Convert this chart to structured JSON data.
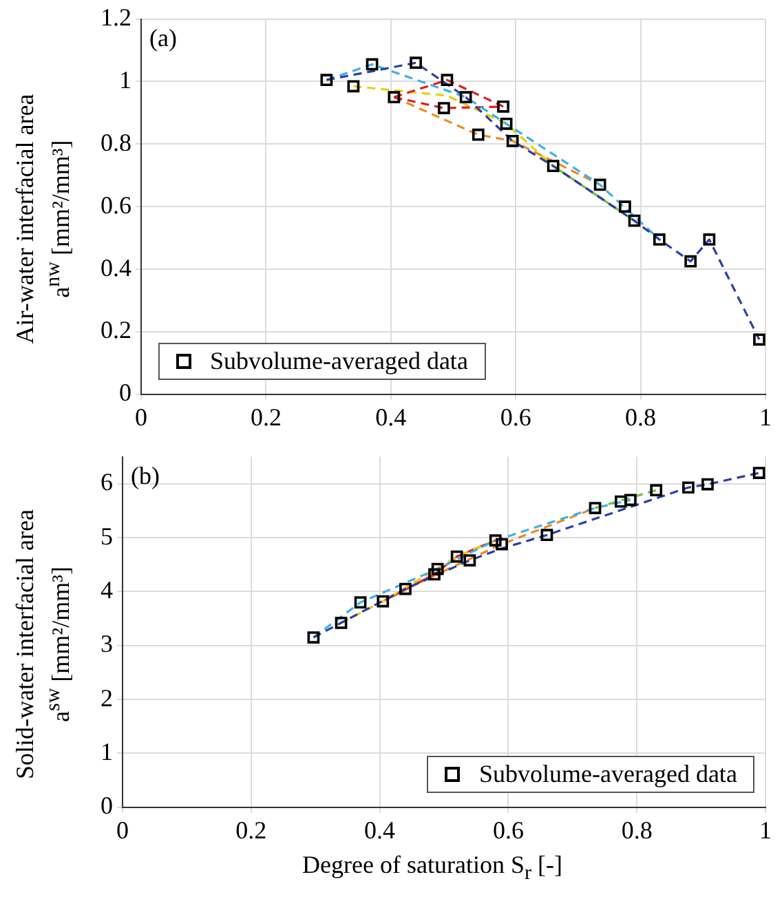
{
  "chart_data": [
    {
      "type": "line",
      "ylabel": "Air-water interfacial area\na$^{nw}$ [mm²/mm³]",
      "annotations": [
        "(a)"
      ],
      "xlim": [
        0,
        1
      ],
      "xticks": [
        0,
        0.2,
        0.4,
        0.6,
        0.8,
        1
      ],
      "ylim": [
        0,
        1.2
      ],
      "yticks": [
        0,
        0.2,
        0.4,
        0.6,
        0.8,
        1,
        1.2
      ],
      "grid": true,
      "legend": "bottom left",
      "series": [
        {
          "color": "#2b3fa8",
          "line_style": "dashed",
          "marker": "none",
          "x": [
            0.297,
            0.44,
            0.52,
            0.595,
            0.66,
            0.79,
            0.83,
            0.88,
            0.91,
            0.99
          ],
          "values": [
            1.005,
            1.06,
            0.95,
            0.81,
            0.73,
            0.555,
            0.495,
            0.425,
            0.495,
            0.175
          ]
        },
        {
          "color": "#3fb0e8",
          "line_style": "dashed",
          "marker": "none",
          "x": [
            0.297,
            0.37,
            0.52,
            0.585,
            0.735,
            0.83
          ],
          "values": [
            1.005,
            1.055,
            0.95,
            0.865,
            0.67,
            0.495
          ]
        },
        {
          "color": "#e02020",
          "line_style": "dashed",
          "marker": "none",
          "x": [
            0.405,
            0.49,
            0.58
          ],
          "values": [
            0.95,
            1.005,
            0.92
          ]
        },
        {
          "color": "#e02020",
          "line_style": "dashed",
          "marker": "none",
          "x": [
            0.405,
            0.485,
            0.58
          ],
          "values": [
            0.95,
            0.915,
            0.92
          ]
        },
        {
          "color": "#e8d000",
          "line_style": "dashed",
          "marker": "none",
          "x": [
            0.34,
            0.49,
            0.585,
            0.66
          ],
          "values": [
            0.985,
            0.955,
            0.865,
            0.73
          ]
        },
        {
          "color": "#f08a20",
          "line_style": "dashed",
          "marker": "none",
          "x": [
            0.405,
            0.54,
            0.595,
            0.735
          ],
          "values": [
            0.95,
            0.83,
            0.81,
            0.67
          ]
        },
        {
          "color": "#70c040",
          "line_style": "solid",
          "marker": "none",
          "x": [
            0.66,
            0.79
          ],
          "values": [
            0.73,
            0.555
          ]
        },
        {
          "type": "scatter",
          "name": "Subvolume-averaged data",
          "color": "#000000",
          "marker": "square",
          "x": [
            0.297,
            0.34,
            0.37,
            0.405,
            0.44,
            0.485,
            0.49,
            0.52,
            0.54,
            0.58,
            0.585,
            0.595,
            0.66,
            0.735,
            0.775,
            0.79,
            0.83,
            0.88,
            0.91,
            0.99
          ],
          "values": [
            1.005,
            0.985,
            1.055,
            0.95,
            1.06,
            0.915,
            1.005,
            0.95,
            0.83,
            0.92,
            0.865,
            0.81,
            0.73,
            0.67,
            0.6,
            0.555,
            0.495,
            0.425,
            0.495,
            0.175
          ]
        }
      ]
    },
    {
      "type": "line",
      "xlabel": "Degree of saturation S$_{r}$ [-]",
      "ylabel": "Solid-water interfacial area\na$^{sw}$ [mm²/mm³]",
      "annotations": [
        "(b)"
      ],
      "xlim": [
        0,
        1
      ],
      "xticks": [
        0,
        0.2,
        0.4,
        0.6,
        0.8,
        1
      ],
      "ylim": [
        0,
        6.5
      ],
      "yticks": [
        0,
        1,
        2,
        3,
        4,
        5,
        6
      ],
      "grid": true,
      "legend": "bottom right",
      "series": [
        {
          "color": "#2b3fa8",
          "line_style": "dashed",
          "marker": "none",
          "x": [
            0.297,
            0.44,
            0.54,
            0.59,
            0.66,
            0.88,
            0.91,
            0.99
          ],
          "values": [
            3.15,
            4.05,
            4.58,
            4.8,
            5.05,
            5.93,
            5.99,
            6.2
          ]
        },
        {
          "color": "#3fb0e8",
          "line_style": "dashed",
          "marker": "none",
          "x": [
            0.297,
            0.37,
            0.49,
            0.58,
            0.735,
            0.79
          ],
          "values": [
            3.15,
            3.8,
            4.42,
            4.95,
            5.55,
            5.7
          ]
        },
        {
          "color": "#e8d000",
          "line_style": "dashed",
          "marker": "none",
          "x": [
            0.34,
            0.405,
            0.52,
            0.58
          ],
          "values": [
            3.42,
            3.82,
            4.65,
            4.95
          ]
        },
        {
          "color": "#e02020",
          "line_style": "solid",
          "marker": "none",
          "x": [
            0.405,
            0.485,
            0.52,
            0.58
          ],
          "values": [
            3.82,
            4.32,
            4.65,
            4.95
          ]
        },
        {
          "color": "#f08a20",
          "line_style": "dashed",
          "marker": "none",
          "x": [
            0.44,
            0.59,
            0.735
          ],
          "values": [
            4.05,
            4.88,
            5.55
          ]
        },
        {
          "color": "#70c040",
          "line_style": "dashed",
          "marker": "none",
          "x": [
            0.735,
            0.83
          ],
          "values": [
            5.55,
            5.88
          ]
        },
        {
          "type": "scatter",
          "name": "Subvolume-averaged data",
          "color": "#000000",
          "marker": "square",
          "x": [
            0.297,
            0.34,
            0.37,
            0.405,
            0.44,
            0.485,
            0.49,
            0.52,
            0.54,
            0.58,
            0.59,
            0.66,
            0.735,
            0.775,
            0.79,
            0.83,
            0.88,
            0.91,
            0.99
          ],
          "values": [
            3.15,
            3.42,
            3.8,
            3.82,
            4.05,
            4.32,
            4.42,
            4.65,
            4.58,
            4.95,
            4.88,
            5.05,
            5.55,
            5.67,
            5.7,
            5.88,
            5.93,
            5.99,
            6.2
          ]
        }
      ]
    }
  ]
}
